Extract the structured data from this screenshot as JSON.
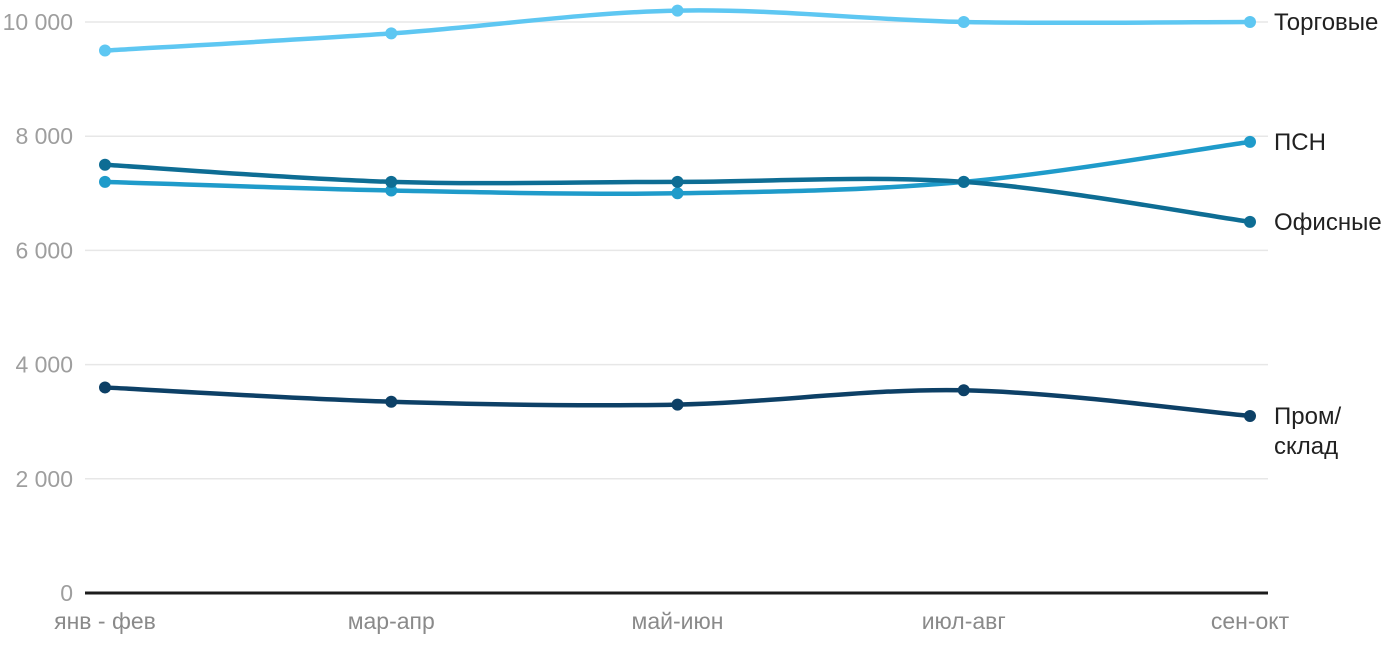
{
  "chart_data": {
    "type": "line",
    "title": "",
    "xlabel": "",
    "ylabel": "",
    "categories": [
      "янв - фев",
      "мар-апр",
      "май-июн",
      "июл-авг",
      "сен-окт"
    ],
    "series": [
      {
        "name": "Торговые",
        "label_lines": [
          "Торговые"
        ],
        "color": "#5EC7F2",
        "values": [
          9500,
          9800,
          10200,
          10000,
          10000
        ]
      },
      {
        "name": "ПСН",
        "label_lines": [
          "ПСН"
        ],
        "color": "#1F9BCA",
        "values": [
          7200,
          7050,
          7000,
          7200,
          7900
        ]
      },
      {
        "name": "Офисные",
        "label_lines": [
          "Офисные"
        ],
        "color": "#0E6D94",
        "values": [
          7500,
          7200,
          7200,
          7200,
          6500
        ]
      },
      {
        "name": "Пром/склад",
        "label_lines": [
          "Пром/",
          "склад"
        ],
        "color": "#0D4066",
        "values": [
          3600,
          3350,
          3300,
          3550,
          3100
        ]
      }
    ],
    "y_axis": {
      "min": 0,
      "max": 10000,
      "tick_step": 2000,
      "tick_labels": [
        "0",
        "2 000",
        "4 000",
        "6 000",
        "8 000",
        "10 000"
      ]
    },
    "ylim": [
      0,
      10000
    ],
    "grid": true,
    "legend_position": "right",
    "line_style": "smooth",
    "colors": {
      "background": "#FFFFFF",
      "gridline": "#E7E7E7",
      "zero_axis": "#1C1C1C",
      "y_tick_text": "#9E9E9E",
      "x_tick_text": "#8A8A8A",
      "legend_text": "#212121"
    }
  }
}
